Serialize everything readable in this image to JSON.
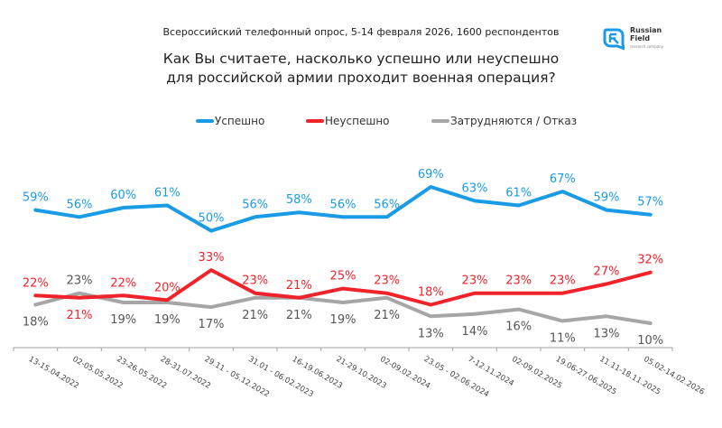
{
  "header": {
    "subtitle": "Всероссийский телефонный опрос, 5-14 февраля 2026, 1600 респондентов",
    "title_line1": "Как Вы считаете, насколько успешно или неуспешно",
    "title_line2": "для российской армии проходит военная операция?"
  },
  "logo": {
    "icon": "russian-field-logo-icon",
    "line1": "Russian",
    "line2": "Field",
    "line3": "research company",
    "color": "#1a9be6"
  },
  "chart_data": {
    "type": "line",
    "title": "Как Вы считаете, насколько успешно или неуспешно для российской армии проходит военная операция?",
    "subtitle": "Всероссийский телефонный опрос, 5-14 февраля 2026, 1600 респондентов",
    "xlabel": "",
    "ylabel": "",
    "grid": false,
    "legend_position": "top",
    "ylim": [
      0,
      80
    ],
    "categories": [
      "13-15.04.2022",
      "02-05.05.2022",
      "23-26.05.2022",
      "28-31.07.2022",
      "29.11 - 05.12.2022",
      "31.01 - 06.02.2023",
      "16-19.06.2023",
      "21-29.10.2023",
      "02-09.02.2024",
      "23.05 - 02.06.2024",
      "7-12.11.2024",
      "02-09.02.2025",
      "19.06-27.06.2025",
      "11.11-18.11.2025",
      "05.02-14.02.2026"
    ],
    "series": [
      {
        "name": "Успешно",
        "color": "#1a9be6",
        "values": [
          59,
          56,
          60,
          61,
          50,
          56,
          58,
          56,
          56,
          69,
          63,
          61,
          67,
          59,
          57
        ],
        "label_position": "above"
      },
      {
        "name": "Неуспешно",
        "color": "#f0232b",
        "values": [
          22,
          21,
          22,
          20,
          33,
          23,
          21,
          25,
          23,
          18,
          23,
          23,
          23,
          27,
          32
        ],
        "label_position": [
          "above",
          "below",
          "above",
          "above",
          "above",
          "above",
          "above",
          "above",
          "above",
          "above",
          "above",
          "above",
          "above",
          "above",
          "above"
        ]
      },
      {
        "name": "Затрудняются / Отказ",
        "color": "#a6a6a6",
        "label_color": "#555555",
        "values": [
          18,
          23,
          19,
          19,
          17,
          21,
          21,
          19,
          21,
          13,
          14,
          16,
          11,
          13,
          10
        ],
        "label_position": [
          "below",
          "above",
          "below",
          "below",
          "below",
          "below",
          "below",
          "below",
          "below",
          "below",
          "below",
          "below",
          "below",
          "below",
          "below"
        ]
      }
    ],
    "value_suffix": "%"
  }
}
